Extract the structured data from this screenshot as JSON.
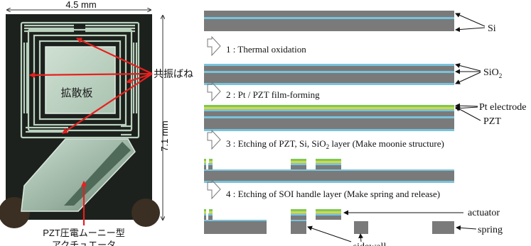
{
  "photo": {
    "width_label": "4.5 mm",
    "height_label": "7.1 mm",
    "spring_label": "共振ばね",
    "plate_label": "拡散板",
    "actuator_label_1": "PZT圧電ムーニー型",
    "actuator_label_2": "アクチュエータ"
  },
  "process": {
    "si_label": "Si",
    "sio2_label": "SiO",
    "sio2_sub": "2",
    "pt_label": "Pt electrode",
    "pzt_label": "PZT",
    "actuator_label": "actuator",
    "spring_label": "spring",
    "sidewall_label": "sidewall",
    "steps": [
      {
        "prefix": "1 : ",
        "text": "Thermal oxidation"
      },
      {
        "prefix": "2 : ",
        "text": "Pt / PZT film-forming"
      },
      {
        "prefix": "3 : ",
        "text": "Etching of PZT,  Si,  SiO",
        "sub": "2",
        "tail": " layer (Make moonie structure)"
      },
      {
        "prefix": "4 : ",
        "text": "Etching of SOI handle layer (Make spring and release)"
      }
    ]
  },
  "colors": {
    "silicon": "#7a7a7a",
    "oxide": "#78c3dc",
    "pt": "#d8d838",
    "pzt": "#7cc85c",
    "arrow_red": "#e8201e"
  }
}
